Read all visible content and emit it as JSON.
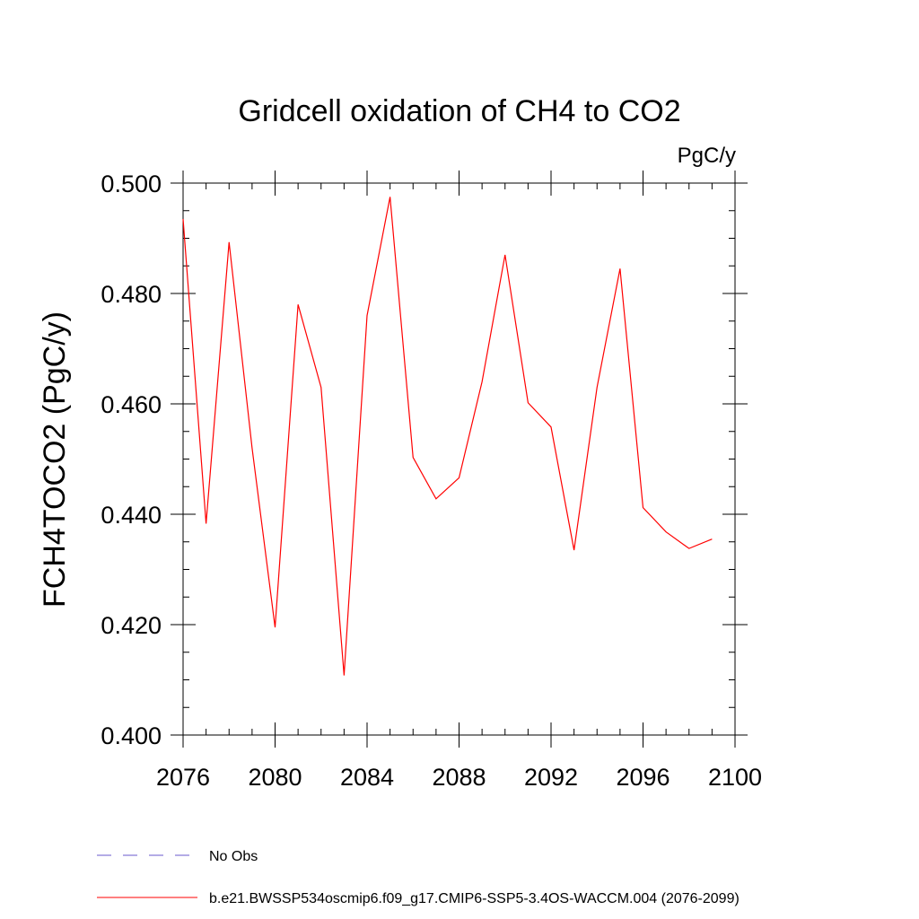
{
  "chart_data": {
    "type": "line",
    "title": "Gridcell oxidation of CH4 to CO2",
    "units": "PgC/y",
    "ylabel": "FCH4TOCO2  (PgC/y)",
    "xlabel": "",
    "xlim": [
      2076,
      2100
    ],
    "ylim": [
      0.4,
      0.5
    ],
    "xticks": [
      "2076",
      "2080",
      "2084",
      "2088",
      "2092",
      "2096",
      "2100"
    ],
    "yticks": [
      "0.400",
      "0.420",
      "0.440",
      "0.460",
      "0.480",
      "0.500"
    ],
    "grid": false,
    "legend_position": "bottom",
    "series": [
      {
        "name": "b.e21.BWSSP534oscmip6.f09_g17.CMIP6-SSP5-3.4OS-WACCM.004 (2076-2099)",
        "color": "#ff0000",
        "style": "solid",
        "x": [
          2076,
          2077,
          2078,
          2079,
          2080,
          2081,
          2082,
          2083,
          2084,
          2085,
          2086,
          2087,
          2088,
          2089,
          2090,
          2091,
          2092,
          2093,
          2094,
          2095,
          2096,
          2097,
          2098,
          2099
        ],
        "values": [
          0.4935,
          0.4383,
          0.4893,
          0.452,
          0.4195,
          0.478,
          0.463,
          0.4108,
          0.476,
          0.4975,
          0.4503,
          0.4428,
          0.4466,
          0.464,
          0.487,
          0.4602,
          0.4558,
          0.4335,
          0.463,
          0.4845,
          0.4412,
          0.4368,
          0.4338,
          0.4355
        ]
      }
    ],
    "legend": [
      {
        "label": "No Obs",
        "color": "#6a5acd",
        "style": "dashed"
      },
      {
        "label": "b.e21.BWSSP534oscmip6.f09_g17.CMIP6-SSP5-3.4OS-WACCM.004 (2076-2099)",
        "color": "#ff0000",
        "style": "solid"
      }
    ]
  }
}
